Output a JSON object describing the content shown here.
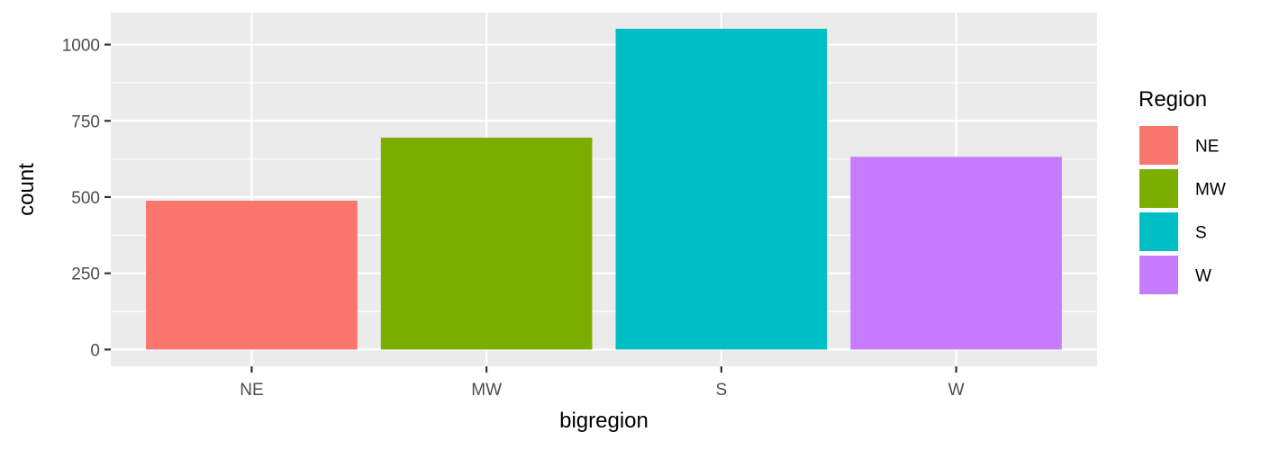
{
  "chart_data": {
    "type": "bar",
    "xlabel": "bigregion",
    "ylabel": "count",
    "categories": [
      "NE",
      "MW",
      "S",
      "W"
    ],
    "values": [
      488,
      695,
      1052,
      632
    ],
    "colors": [
      "#F8766D",
      "#7CAE00",
      "#00BFC4",
      "#C77CFF"
    ],
    "ylim": [
      -55,
      1105
    ],
    "yticks": [
      0,
      250,
      500,
      750,
      1000
    ],
    "ytick_labels": [
      "0",
      "250",
      "500",
      "750",
      "1000"
    ],
    "grid": true,
    "panel_background": "#EBEBEB",
    "grid_color": "#FFFFFF",
    "legend": {
      "title": "Region",
      "placement": "right",
      "items": [
        {
          "label": "NE",
          "color": "#F8766D"
        },
        {
          "label": "MW",
          "color": "#7CAE00"
        },
        {
          "label": "S",
          "color": "#00BFC4"
        },
        {
          "label": "W",
          "color": "#C77CFF"
        }
      ]
    }
  }
}
